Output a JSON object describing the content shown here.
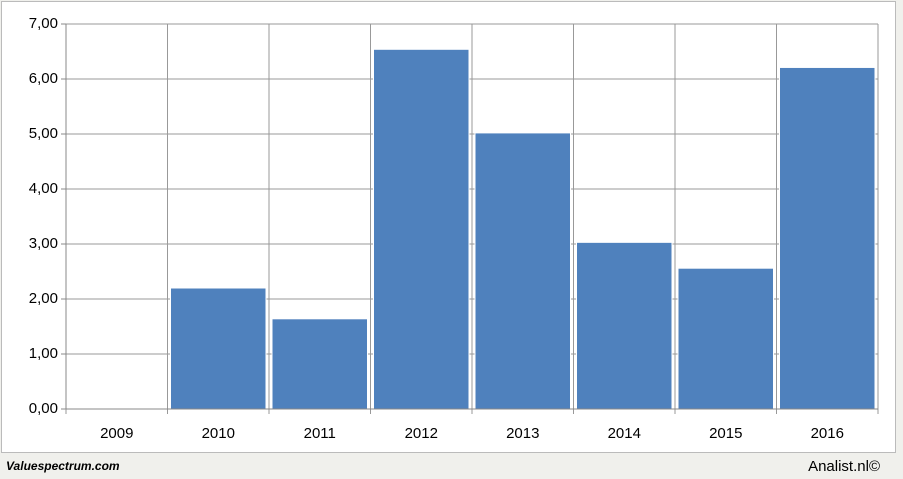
{
  "chart_data": {
    "type": "bar",
    "categories": [
      "2009",
      "2010",
      "2011",
      "2012",
      "2013",
      "2014",
      "2015",
      "2016"
    ],
    "values": [
      null,
      2.2,
      1.64,
      6.54,
      5.02,
      3.03,
      2.56,
      6.21
    ],
    "color": "#4f81bd",
    "ylim": [
      0,
      7
    ],
    "yticks": [
      {
        "value": 0,
        "label": "0,00"
      },
      {
        "value": 1,
        "label": "1,00"
      },
      {
        "value": 2,
        "label": "2,00"
      },
      {
        "value": 3,
        "label": "3,00"
      },
      {
        "value": 4,
        "label": "4,00"
      },
      {
        "value": 5,
        "label": "5,00"
      },
      {
        "value": 6,
        "label": "6,00"
      },
      {
        "value": 7,
        "label": "7,00"
      }
    ],
    "grid": true
  },
  "footer": {
    "left": "Valuespectrum.com",
    "right": "Analist.nl©"
  }
}
